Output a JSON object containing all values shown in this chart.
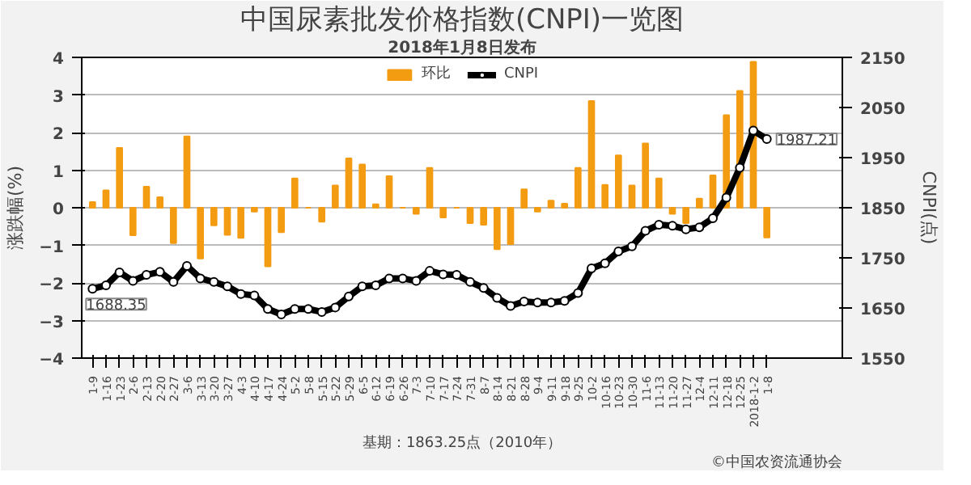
{
  "chart_data": {
    "type": "bar",
    "title": "中国尿素批发价格指数(CNPI)一览图",
    "subtitle": "2018年1月8日发布",
    "ylabel": "涨跌幅(%)",
    "y2label": "CNPI(点)",
    "categories": [
      "1-9",
      "1-16",
      "1-23",
      "2-6",
      "2-13",
      "2-20",
      "2-27",
      "3-6",
      "3-13",
      "3-20",
      "3-27",
      "4-3",
      "4-10",
      "4-17",
      "4-24",
      "5-2",
      "5-8",
      "5-15",
      "5-22",
      "5-29",
      "6-5",
      "6-12",
      "6-19",
      "6-26",
      "7-3",
      "7-10",
      "7-17",
      "7-24",
      "7-31",
      "8-7",
      "8-14",
      "8-21",
      "8-28",
      "9-4",
      "9-11",
      "9-18",
      "9-25",
      "10-2",
      "10-16",
      "10-23",
      "10-30",
      "11-6",
      "11-13",
      "11-20",
      "11-27",
      "12-4",
      "12-11",
      "12-18",
      "12-25",
      "2018-1-2",
      "1-8"
    ],
    "series": [
      {
        "name": "环比",
        "color": "#f39c12",
        "values": [
          0.15,
          0.46,
          1.59,
          -0.73,
          0.56,
          0.28,
          -0.94,
          1.9,
          -1.35,
          -0.47,
          -0.72,
          -0.8,
          -0.1,
          -1.56,
          -0.65,
          0.78,
          0,
          -0.37,
          0.59,
          1.31,
          1.15,
          0.09,
          0.84,
          0,
          -0.16,
          1.06,
          -0.26,
          0,
          -0.41,
          -0.45,
          -1.1,
          -0.97,
          0.49,
          -0.1,
          0.19,
          0.11,
          1.06,
          2.84,
          0.61,
          1.39,
          0.59,
          1.71,
          0.78,
          -0.16,
          -0.41,
          0.24,
          0.86,
          2.46,
          3.11,
          3.88,
          -0.79
        ]
      },
      {
        "name": "CNPI",
        "type": "line",
        "axis": "y2",
        "color": "#000000",
        "values": [
          1688.35,
          1695,
          1721,
          1704,
          1716,
          1722,
          1702,
          1734,
          1709,
          1702,
          1693,
          1678,
          1675,
          1648,
          1637,
          1648,
          1648,
          1642,
          1651,
          1673,
          1693,
          1695,
          1709,
          1709,
          1704,
          1724,
          1717,
          1716,
          1702,
          1690,
          1670,
          1654,
          1663,
          1661,
          1661,
          1664,
          1680,
          1729,
          1739,
          1763,
          1773,
          1804,
          1816,
          1814,
          1807,
          1811,
          1829,
          1870,
          1930,
          2004,
          1987.21
        ],
        "value_labels": [
          "1688.35",
          null,
          null,
          null,
          null,
          null,
          null,
          null,
          null,
          null,
          null,
          null,
          null,
          null,
          null,
          null,
          null,
          null,
          null,
          null,
          null,
          null,
          null,
          null,
          null,
          null,
          null,
          null,
          null,
          null,
          null,
          null,
          null,
          null,
          null,
          null,
          null,
          null,
          null,
          null,
          null,
          null,
          null,
          null,
          null,
          null,
          null,
          null,
          null,
          null,
          "1987.21"
        ]
      }
    ],
    "ylim": [
      -4,
      4
    ],
    "yticks": [
      -4,
      -3,
      -2,
      -1,
      0,
      1,
      2,
      3,
      4
    ],
    "y2lim": [
      1550,
      2150
    ],
    "y2ticks": [
      1550,
      1650,
      1750,
      1850,
      1950,
      2050,
      2150
    ],
    "grid": "y",
    "legend": "top",
    "marker": "circle",
    "annotations": [
      "基期：1863.25点（2010年）",
      "©中国农资流通协会"
    ]
  }
}
